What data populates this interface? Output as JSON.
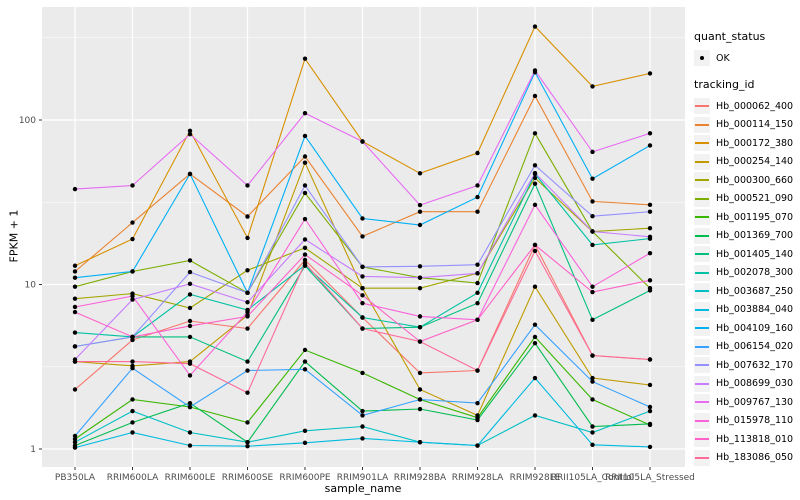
{
  "chart_data": {
    "type": "line",
    "title": "",
    "xlabel": "sample_name",
    "ylabel": "FPKM + 1",
    "y_scale": "log10",
    "y_ticks": [
      1,
      10,
      100
    ],
    "y_minor_ticks": [
      3.1623,
      31.623,
      316.23
    ],
    "ylim": [
      0.93,
      420
    ],
    "grid": true,
    "legend_position": "right",
    "panel_bg": "#EBEBEB",
    "grid_color": "#FFFFFF",
    "tick_text_color": "#4D4D4D",
    "point_color": "#000000",
    "categories": [
      "PB350LA",
      "RRIM600LA",
      "RRIM600LE",
      "RRIM600SE",
      "RRIM600PE",
      "RRIM901LA",
      "RRIM928BA",
      "RRIM928LA",
      "RRIM928LE",
      "RRII105LA_Control",
      "RRII105LA_Stressed"
    ],
    "series": [
      {
        "name": "Hb_000062_400",
        "color": "#F8766D",
        "values": [
          2.3,
          4.6,
          6.0,
          5.4,
          14.1,
          6.3,
          2.9,
          3.0,
          17.4,
          3.7,
          3.5
        ]
      },
      {
        "name": "Hb_000114_150",
        "color": "#EA8331",
        "values": [
          12.0,
          23.8,
          47.0,
          25.9,
          60.0,
          19.6,
          27.7,
          27.7,
          140.0,
          32.0,
          30.5
        ]
      },
      {
        "name": "Hb_000172_380",
        "color": "#D89000",
        "values": [
          13.0,
          18.9,
          86.0,
          19.2,
          236.0,
          74.0,
          47.4,
          63.0,
          370.0,
          160.0,
          192.0
        ]
      },
      {
        "name": "Hb_000254_140",
        "color": "#C09B00",
        "values": [
          3.4,
          3.2,
          3.4,
          6.5,
          55.0,
          9.5,
          2.3,
          1.6,
          9.7,
          2.7,
          2.45
        ]
      },
      {
        "name": "Hb_000300_660",
        "color": "#A3A500",
        "values": [
          8.2,
          8.8,
          7.2,
          12.2,
          16.7,
          9.5,
          9.5,
          11.7,
          44.4,
          21.0,
          22.0
        ]
      },
      {
        "name": "Hb_000521_090",
        "color": "#7CAE00",
        "values": [
          9.7,
          12.0,
          14.0,
          8.9,
          36.0,
          12.8,
          11.0,
          10.2,
          83.0,
          21.0,
          9.5
        ]
      },
      {
        "name": "Hb_001195_070",
        "color": "#39B600",
        "values": [
          1.15,
          2.0,
          1.8,
          1.45,
          4.0,
          2.9,
          2.0,
          1.55,
          4.8,
          2.0,
          1.4
        ]
      },
      {
        "name": "Hb_001369_700",
        "color": "#00BB4E",
        "values": [
          1.05,
          1.45,
          1.9,
          1.1,
          3.4,
          1.7,
          1.75,
          1.5,
          4.4,
          1.37,
          1.42
        ]
      },
      {
        "name": "Hb_001405_140",
        "color": "#00BF7D",
        "values": [
          4.2,
          4.8,
          4.8,
          3.4,
          13.0,
          5.4,
          5.5,
          7.7,
          41.0,
          6.1,
          9.2
        ]
      },
      {
        "name": "Hb_002078_300",
        "color": "#00C1A3",
        "values": [
          5.1,
          4.8,
          8.7,
          7.0,
          13.1,
          6.3,
          5.5,
          8.9,
          47.0,
          17.4,
          19.0
        ]
      },
      {
        "name": "Hb_003687_250",
        "color": "#00BFC4",
        "values": [
          1.1,
          1.7,
          1.26,
          1.1,
          1.29,
          1.37,
          1.1,
          1.05,
          1.6,
          1.26,
          1.7
        ]
      },
      {
        "name": "Hb_003884_040",
        "color": "#00BAE0",
        "values": [
          1.02,
          1.26,
          1.05,
          1.04,
          1.09,
          1.16,
          1.1,
          1.05,
          2.7,
          1.06,
          1.03
        ]
      },
      {
        "name": "Hb_004109_160",
        "color": "#00B0F6",
        "values": [
          11.0,
          12.0,
          47.0,
          8.9,
          80.0,
          25.2,
          23.0,
          34.0,
          195.0,
          44.0,
          70.0
        ]
      },
      {
        "name": "Hb_006154_020",
        "color": "#35A2FF",
        "values": [
          1.2,
          3.1,
          1.8,
          3.0,
          3.05,
          1.6,
          2.0,
          1.9,
          5.7,
          2.57,
          1.8
        ]
      },
      {
        "name": "Hb_007632_170",
        "color": "#9590FF",
        "values": [
          4.2,
          4.8,
          11.9,
          8.9,
          40.0,
          12.8,
          12.9,
          13.2,
          53.0,
          26.0,
          27.7
        ]
      },
      {
        "name": "Hb_008699_030",
        "color": "#C77CFF",
        "values": [
          3.5,
          8.1,
          10.1,
          7.8,
          18.8,
          11.2,
          11.0,
          11.7,
          47.6,
          21.0,
          19.5
        ]
      },
      {
        "name": "Hb_009767_130",
        "color": "#E76BF3",
        "values": [
          38.0,
          40.0,
          82.0,
          40.0,
          110.0,
          74.0,
          30.4,
          40.0,
          200.0,
          64.0,
          83.0
        ]
      },
      {
        "name": "Hb_015978_110",
        "color": "#FA62DB",
        "values": [
          7.3,
          8.5,
          2.8,
          6.8,
          25.0,
          7.7,
          6.4,
          6.1,
          30.5,
          9.7,
          15.5
        ]
      },
      {
        "name": "Hb_113818_010",
        "color": "#FF61C8",
        "values": [
          6.8,
          4.8,
          5.6,
          6.4,
          15.2,
          8.6,
          4.5,
          6.1,
          17.4,
          9.0,
          10.6
        ]
      },
      {
        "name": "Hb_183086_050",
        "color": "#FF6A98",
        "values": [
          3.4,
          3.4,
          3.3,
          2.2,
          13.5,
          5.4,
          4.5,
          3.0,
          16.0,
          3.7,
          3.5
        ]
      }
    ]
  },
  "legend": {
    "quant_status_title": "quant_status",
    "ok_label": "OK",
    "tracking_title": "tracking_id"
  }
}
